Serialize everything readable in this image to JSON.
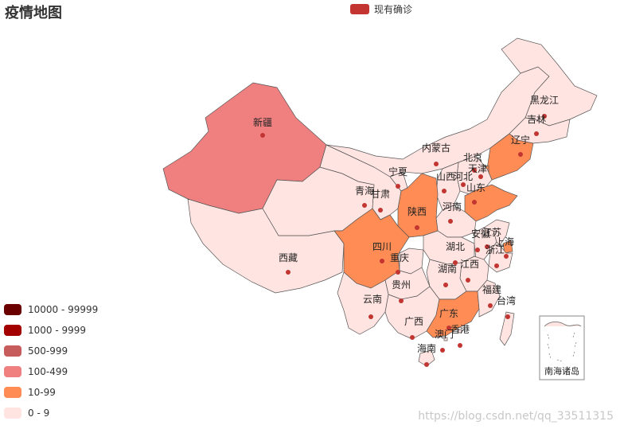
{
  "title": "疫情地图",
  "series_legend": {
    "label": "现有确诊",
    "color": "#c23531"
  },
  "visual_map": {
    "pieces": [
      {
        "label": "10000 - 99999",
        "color": "#6b0000"
      },
      {
        "label": "1000 - 9999",
        "color": "#a30000"
      },
      {
        "label": "500-999",
        "color": "#c75c5c"
      },
      {
        "label": "100-499",
        "color": "#f08080"
      },
      {
        "label": "10-99",
        "color": "#ff8c55"
      },
      {
        "label": "0 - 9",
        "color": "#ffe4e1"
      }
    ]
  },
  "provinces": [
    {
      "name": "新疆",
      "level": "100-499"
    },
    {
      "name": "西藏",
      "level": "0 - 9"
    },
    {
      "name": "青海",
      "level": "0 - 9"
    },
    {
      "name": "甘肃",
      "level": "0 - 9"
    },
    {
      "name": "宁夏",
      "level": "0 - 9"
    },
    {
      "name": "内蒙古",
      "level": "0 - 9"
    },
    {
      "name": "黑龙江",
      "level": "0 - 9"
    },
    {
      "name": "吉林",
      "level": "0 - 9"
    },
    {
      "name": "辽宁",
      "level": "10-99"
    },
    {
      "name": "北京",
      "level": "0 - 9"
    },
    {
      "name": "天津",
      "level": "10-99"
    },
    {
      "name": "河北",
      "level": "0 - 9"
    },
    {
      "name": "山西",
      "level": "0 - 9"
    },
    {
      "name": "山东",
      "level": "10-99"
    },
    {
      "name": "河南",
      "level": "0 - 9"
    },
    {
      "name": "陕西",
      "level": "10-99"
    },
    {
      "name": "四川",
      "level": "10-99"
    },
    {
      "name": "重庆",
      "level": "0 - 9"
    },
    {
      "name": "湖北",
      "level": "0 - 9"
    },
    {
      "name": "安徽",
      "level": "0 - 9"
    },
    {
      "name": "江苏",
      "level": "0 - 9"
    },
    {
      "name": "上海",
      "level": "10-99"
    },
    {
      "name": "浙江",
      "level": "0 - 9"
    },
    {
      "name": "江西",
      "level": "0 - 9"
    },
    {
      "name": "湖南",
      "level": "0 - 9"
    },
    {
      "name": "贵州",
      "level": "0 - 9"
    },
    {
      "name": "云南",
      "level": "0 - 9"
    },
    {
      "name": "广西",
      "level": "0 - 9"
    },
    {
      "name": "广东",
      "level": "10-99"
    },
    {
      "name": "福建",
      "level": "0 - 9"
    },
    {
      "name": "台湾",
      "level": "0 - 9"
    },
    {
      "name": "香港",
      "level": "0 - 9"
    },
    {
      "name": "澳门",
      "level": "0 - 9"
    },
    {
      "name": "海南",
      "level": "0 - 9"
    }
  ],
  "inset_label": "南海诸岛",
  "watermark": "https://blog.csdn.net/qq_33511315"
}
